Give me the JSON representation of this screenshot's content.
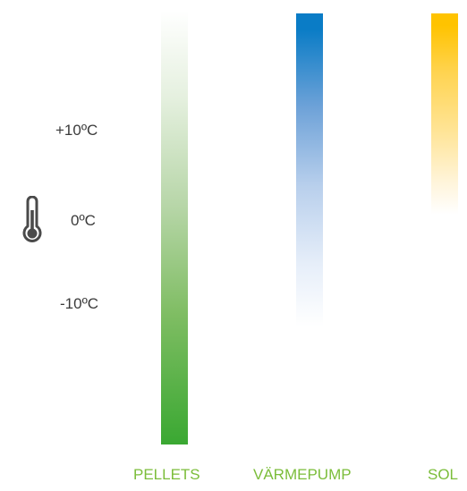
{
  "temperature_labels": {
    "plus10": "+10ºC",
    "zero": "0ºC",
    "minus10": "-10ºC"
  },
  "icons": {
    "thermometer": "thermometer-icon"
  },
  "categories": [
    {
      "label": "PELLETS",
      "color": "#3aa832"
    },
    {
      "label": "VÄRMEPUMP",
      "color": "#0a7cc6"
    },
    {
      "label": "SOL",
      "color": "#ffc300"
    }
  ],
  "label_color": "#7bbd3a"
}
